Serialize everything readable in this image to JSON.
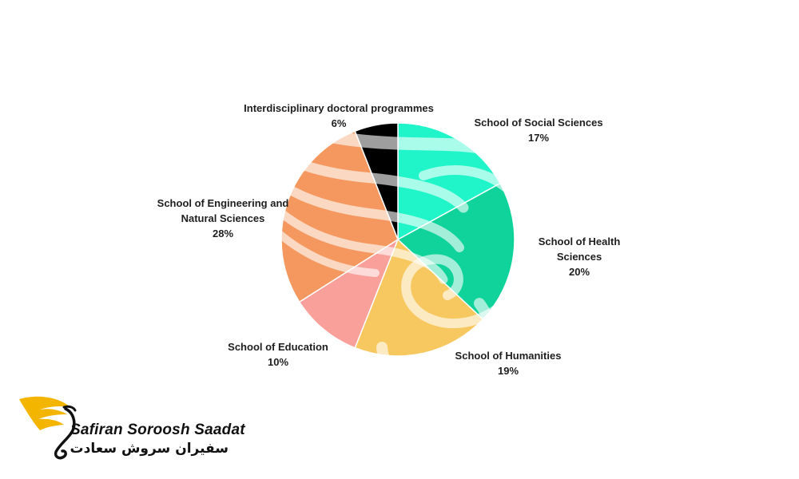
{
  "chart_data": {
    "type": "pie",
    "title": "",
    "slices": [
      {
        "label": "School of Social Sciences",
        "value": 17,
        "pct_text": "17%",
        "color": "#1ff5c8"
      },
      {
        "label": "School of Health Sciences",
        "value": 20,
        "pct_text": "20%",
        "color": "#0fd39a"
      },
      {
        "label": "School of Humanities",
        "value": 19,
        "pct_text": "19%",
        "color": "#f7c860"
      },
      {
        "label": "School of Education",
        "value": 10,
        "pct_text": "10%",
        "color": "#f9a09b"
      },
      {
        "label": "School of Engineering and Natural Sciences",
        "value": 28,
        "pct_text": "28%",
        "color": "#f5985f"
      },
      {
        "label": "Interdisciplinary doctoral programmes",
        "value": 6,
        "pct_text": "6%",
        "color": "#000000"
      }
    ],
    "start_angle": "12 o'clock",
    "direction": "clockwise",
    "legend": "none",
    "data_labels": "outside, name and percentage"
  },
  "watermark": {
    "name_en": "Safiran Soroosh Saadat",
    "name_fa": "سفیران سروش سعادت",
    "colors": {
      "wing": "#f3b500",
      "text": "#111111"
    }
  }
}
